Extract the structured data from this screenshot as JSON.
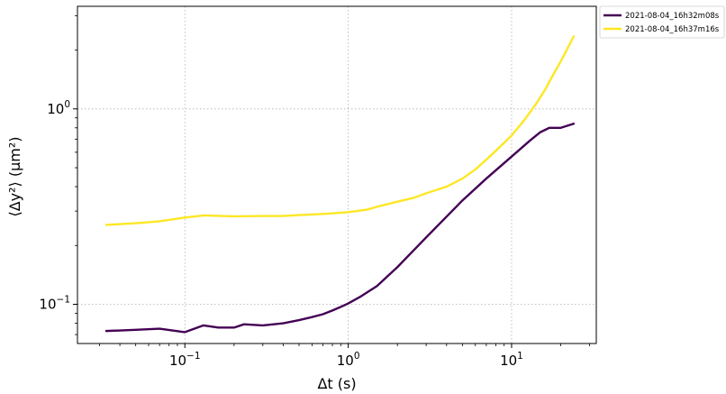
{
  "chart_data": {
    "type": "line",
    "title": "",
    "xlabel": "Δt (s)",
    "ylabel": "⟨Δy²⟩ (μm²)",
    "xscale": "log",
    "yscale": "log",
    "xlim": [
      0.022,
      33
    ],
    "ylim": [
      0.063,
      3.35
    ],
    "grid": true,
    "legend_position": "outside-top-right",
    "x_major_ticks": [
      {
        "value": 0.1,
        "base": "10",
        "exp": "−1"
      },
      {
        "value": 1,
        "base": "10",
        "exp": "0"
      },
      {
        "value": 10,
        "base": "10",
        "exp": "1"
      }
    ],
    "y_major_ticks": [
      {
        "value": 0.1,
        "base": "10",
        "exp": "−1"
      },
      {
        "value": 1,
        "base": "10",
        "exp": "0"
      }
    ],
    "series": [
      {
        "name": "2021-08-04_16h32m08s",
        "color": "#440154",
        "x": [
          0.033,
          0.05,
          0.07,
          0.1,
          0.13,
          0.16,
          0.2,
          0.23,
          0.3,
          0.4,
          0.5,
          0.6,
          0.7,
          0.8,
          0.9,
          1.0,
          1.2,
          1.5,
          2.0,
          3.0,
          5.0,
          7.0,
          10.0,
          13.0,
          15.0,
          17.0,
          20.0,
          24.0
        ],
        "y": [
          0.073,
          0.074,
          0.075,
          0.072,
          0.078,
          0.076,
          0.076,
          0.079,
          0.078,
          0.08,
          0.083,
          0.086,
          0.089,
          0.093,
          0.097,
          0.101,
          0.11,
          0.124,
          0.155,
          0.22,
          0.34,
          0.44,
          0.57,
          0.69,
          0.76,
          0.8,
          0.8,
          0.84
        ]
      },
      {
        "name": "2021-08-04_16h37m16s",
        "color": "#fde725",
        "x": [
          0.033,
          0.05,
          0.07,
          0.1,
          0.13,
          0.2,
          0.3,
          0.4,
          0.5,
          0.7,
          1.0,
          1.3,
          1.6,
          2.0,
          2.5,
          3.0,
          4.0,
          5.0,
          6.0,
          7.0,
          8.0,
          10.0,
          12.0,
          14.0,
          16.0,
          18.0,
          20.0,
          24.0
        ],
        "y": [
          0.255,
          0.26,
          0.266,
          0.278,
          0.285,
          0.282,
          0.283,
          0.283,
          0.286,
          0.29,
          0.296,
          0.305,
          0.32,
          0.335,
          0.35,
          0.37,
          0.4,
          0.44,
          0.49,
          0.55,
          0.61,
          0.73,
          0.88,
          1.05,
          1.25,
          1.5,
          1.75,
          2.35
        ]
      }
    ]
  }
}
